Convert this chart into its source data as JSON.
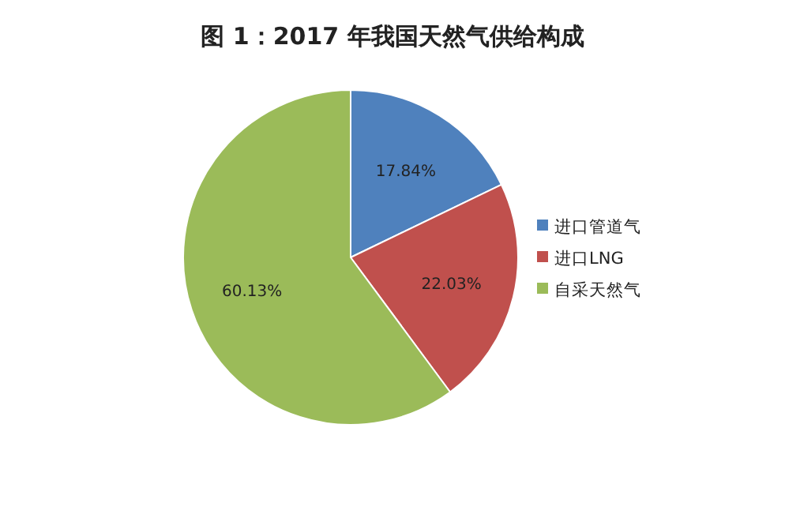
{
  "chart_data": {
    "type": "pie",
    "title": "图 1：2017 年我国天然气供给构成",
    "categories": [
      "进口管道气",
      "进口LNG",
      "自采天然气"
    ],
    "values": [
      17.84,
      22.03,
      60.13
    ],
    "colors": [
      "#4f81bd",
      "#c0504d",
      "#9bbb59"
    ],
    "value_labels": [
      "17.84%",
      "22.03%",
      "60.13%"
    ],
    "legend": "right"
  }
}
